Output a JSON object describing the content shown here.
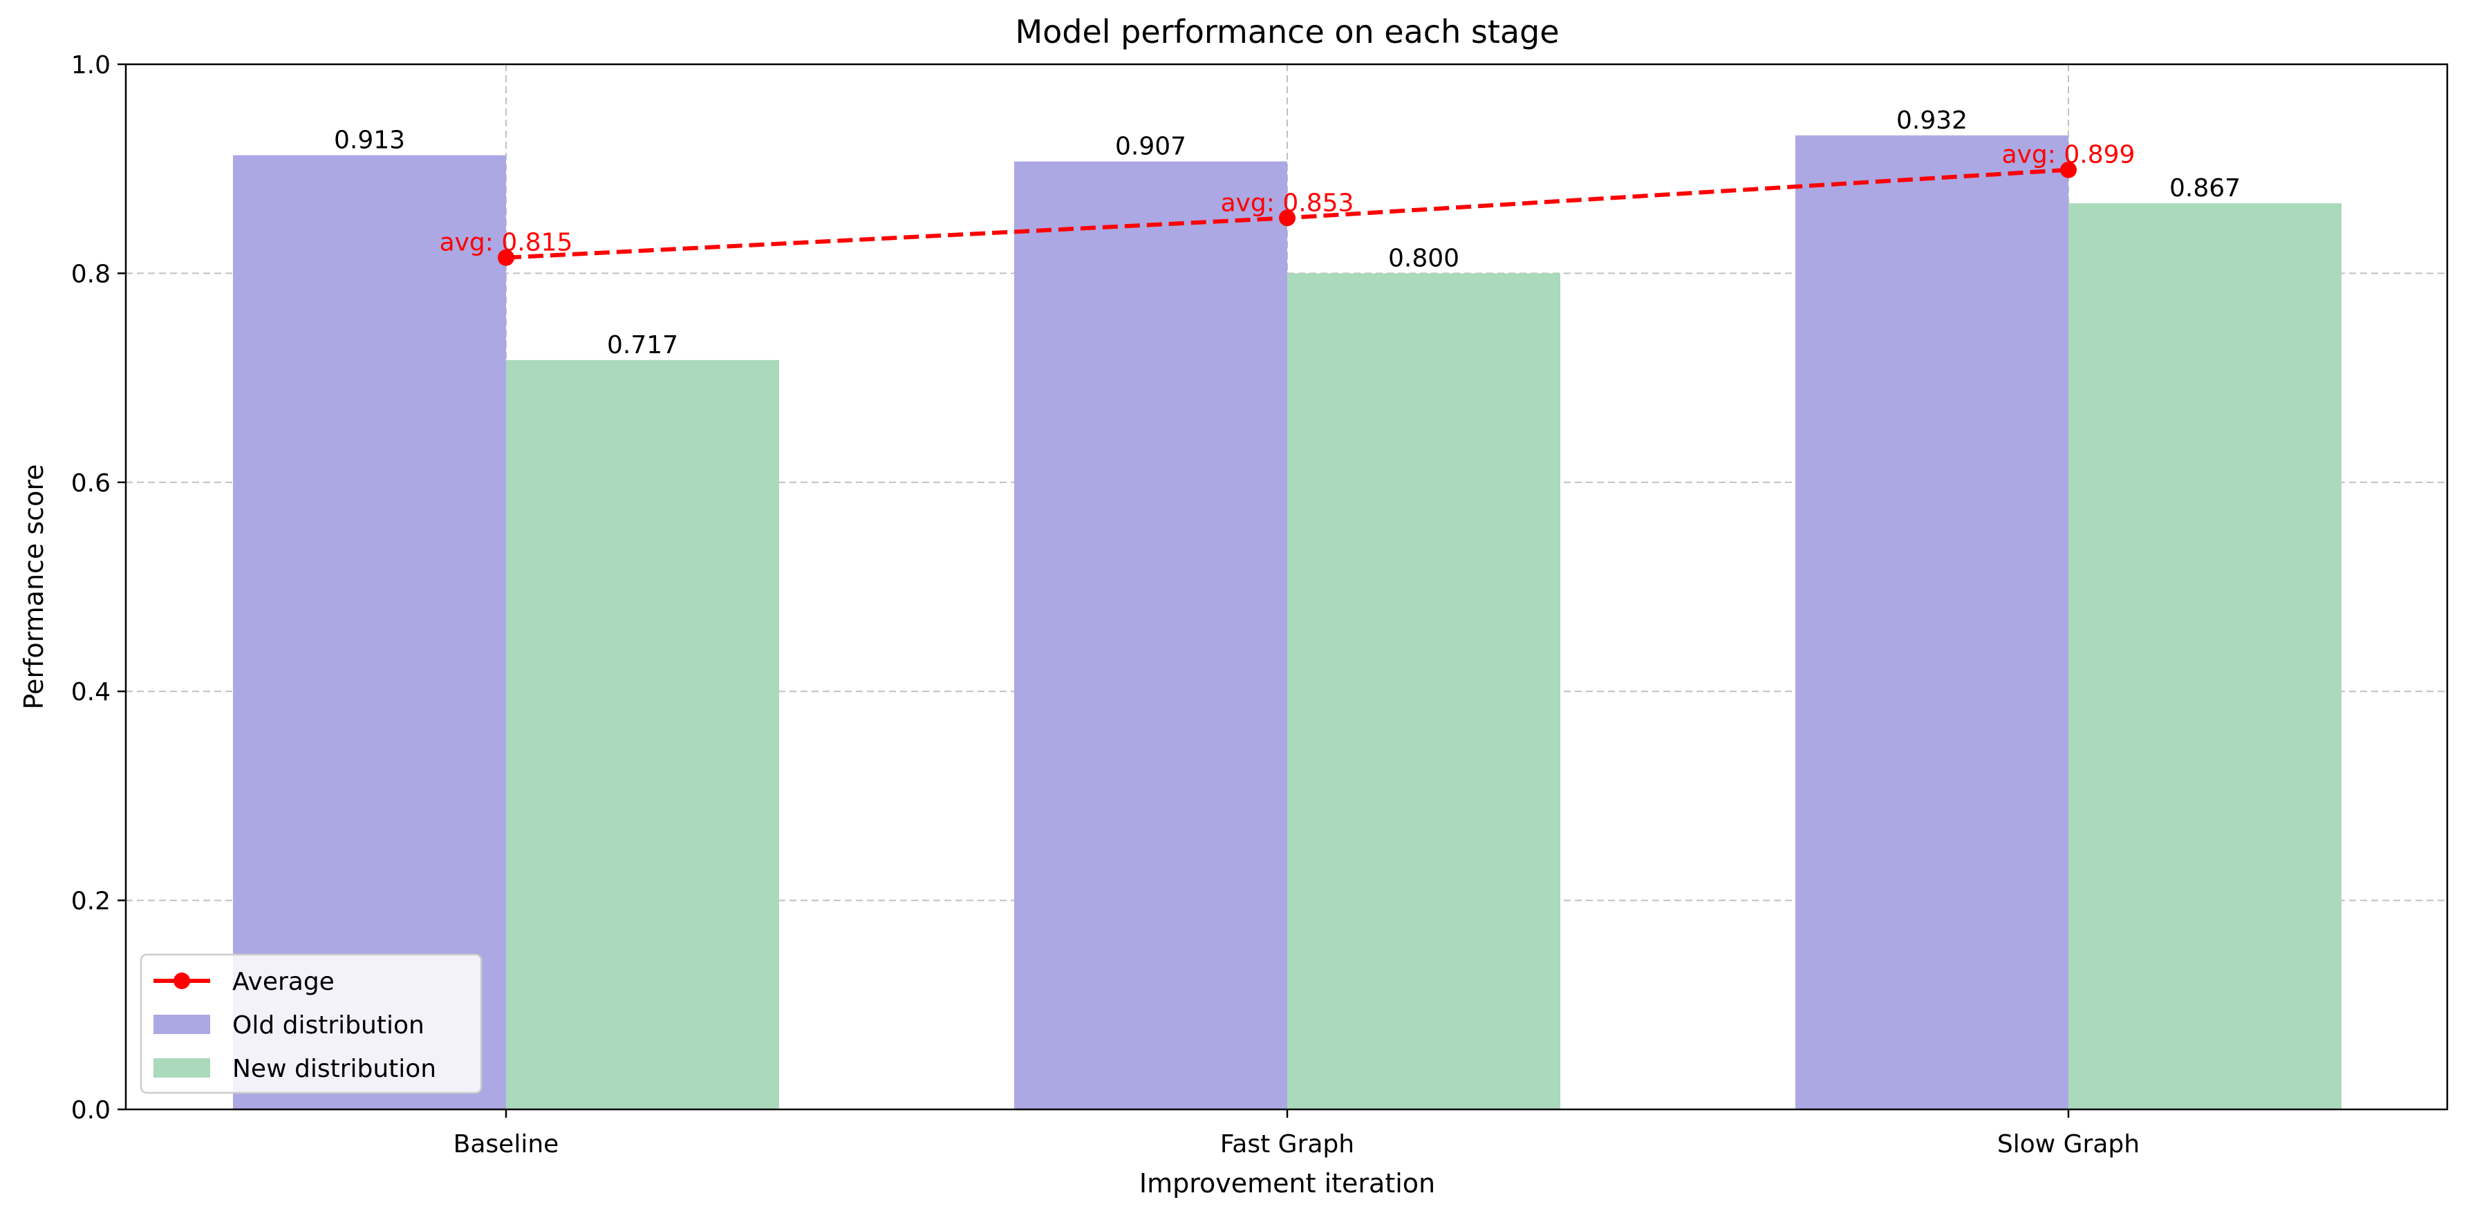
{
  "chart_data": {
    "type": "bar",
    "title": "Model performance on each stage",
    "xlabel": "Improvement iteration",
    "ylabel": "Performance score",
    "categories": [
      "Baseline",
      "Fast Graph",
      "Slow Graph"
    ],
    "ylim": [
      0,
      1.0
    ],
    "yticks": [
      "0.0",
      "0.2",
      "0.4",
      "0.6",
      "0.8",
      "1.0"
    ],
    "grid": true,
    "legend_position": "lower-left",
    "series": [
      {
        "name": "Old distribution",
        "type": "bar",
        "color": "#aca8e3",
        "values": [
          0.913,
          0.907,
          0.932
        ],
        "labels": [
          "0.913",
          "0.907",
          "0.932"
        ]
      },
      {
        "name": "New distribution",
        "type": "bar",
        "color": "#aad9bb",
        "values": [
          0.717,
          0.8,
          0.867
        ],
        "labels": [
          "0.717",
          "0.800",
          "0.867"
        ]
      },
      {
        "name": "Average",
        "type": "line",
        "style": "dashed",
        "marker": "circle",
        "color": "#ff0000",
        "values": [
          0.815,
          0.853,
          0.899
        ],
        "labels": [
          "avg: 0.815",
          "avg: 0.853",
          "avg: 0.899"
        ]
      }
    ]
  }
}
